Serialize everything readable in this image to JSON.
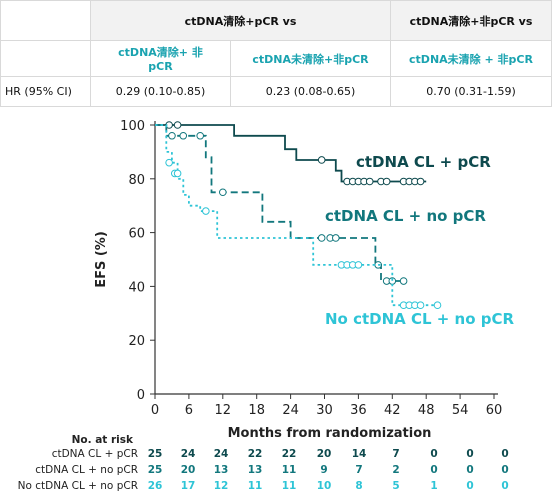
{
  "table": {
    "group1_header": "ctDNA清除+pCR vs",
    "group2_header": "ctDNA清除+非pCR vs",
    "sub1": "ctDNA清除+ 非 pCR",
    "sub2": "ctDNA未清除+非pCR",
    "sub3": "ctDNA未清除 + 非pCR",
    "row_label": "HR (95% CI)",
    "values": [
      "0.29 (0.10-0.85)",
      "0.23 (0.08-0.65)",
      "0.70 (0.31-1.59)"
    ]
  },
  "colors": {
    "cl_pcr": "#0e4a4e",
    "cl_nopcr": "#12777d",
    "nocl_nopcr": "#2ec4d6"
  },
  "chart_data": {
    "type": "line",
    "title": "",
    "xlabel": "Months from randomization",
    "ylabel": "EFS (%)",
    "xlim": [
      0,
      60
    ],
    "ylim": [
      0,
      100
    ],
    "xticks": [
      "0",
      "6",
      "12",
      "18",
      "24",
      "30",
      "36",
      "42",
      "48",
      "54",
      "60"
    ],
    "yticks": [
      "0",
      "20",
      "40",
      "60",
      "80",
      "100"
    ],
    "series": [
      {
        "name": "ctDNA CL + pCR",
        "color": "#0e4a4e",
        "dash": "solid",
        "steps": [
          [
            0,
            100
          ],
          [
            14,
            100
          ],
          [
            14,
            96
          ],
          [
            23,
            96
          ],
          [
            23,
            91
          ],
          [
            25,
            91
          ],
          [
            25,
            87
          ],
          [
            32,
            87
          ],
          [
            32,
            83
          ],
          [
            33,
            83
          ],
          [
            33,
            79
          ],
          [
            48,
            79
          ]
        ],
        "censored": [
          [
            2.5,
            100
          ],
          [
            4,
            100
          ],
          [
            29.5,
            87
          ],
          [
            34,
            79
          ],
          [
            35,
            79
          ],
          [
            36,
            79
          ],
          [
            37,
            79
          ],
          [
            38,
            79
          ],
          [
            40,
            79
          ],
          [
            41,
            79
          ],
          [
            44,
            79
          ],
          [
            45,
            79
          ],
          [
            46,
            79
          ],
          [
            47,
            79
          ]
        ]
      },
      {
        "name": "ctDNA CL + no pCR",
        "color": "#12777d",
        "dash": "dash",
        "steps": [
          [
            0,
            100
          ],
          [
            2,
            100
          ],
          [
            2,
            96
          ],
          [
            9,
            96
          ],
          [
            9,
            88
          ],
          [
            10,
            88
          ],
          [
            10,
            75
          ],
          [
            19,
            75
          ],
          [
            19,
            64
          ],
          [
            24,
            64
          ],
          [
            24,
            58
          ],
          [
            39,
            58
          ],
          [
            39,
            48
          ],
          [
            40,
            48
          ],
          [
            40,
            42
          ],
          [
            44,
            42
          ]
        ],
        "censored": [
          [
            3,
            96
          ],
          [
            5,
            96
          ],
          [
            8,
            96
          ],
          [
            12,
            75
          ],
          [
            29.5,
            58
          ],
          [
            31,
            58
          ],
          [
            32,
            58
          ],
          [
            39.5,
            48
          ],
          [
            41,
            42
          ],
          [
            42,
            42
          ],
          [
            44,
            42
          ]
        ]
      },
      {
        "name": "No ctDNA CL + no pCR",
        "color": "#2ec4d6",
        "dash": "dot",
        "steps": [
          [
            0,
            100
          ],
          [
            2,
            100
          ],
          [
            2,
            90
          ],
          [
            3,
            90
          ],
          [
            3,
            86
          ],
          [
            4,
            86
          ],
          [
            4,
            80
          ],
          [
            5,
            80
          ],
          [
            5,
            74
          ],
          [
            6,
            74
          ],
          [
            6,
            70
          ],
          [
            8,
            70
          ],
          [
            8,
            68
          ],
          [
            11,
            68
          ],
          [
            11,
            58
          ],
          [
            28,
            58
          ],
          [
            28,
            48
          ],
          [
            42,
            48
          ],
          [
            42,
            33
          ],
          [
            50,
            33
          ]
        ],
        "censored": [
          [
            2.5,
            86
          ],
          [
            3.5,
            82
          ],
          [
            4,
            82
          ],
          [
            9,
            68
          ],
          [
            33,
            48
          ],
          [
            34,
            48
          ],
          [
            35,
            48
          ],
          [
            36,
            48
          ],
          [
            44,
            33
          ],
          [
            45,
            33
          ],
          [
            46,
            33
          ],
          [
            47,
            33
          ],
          [
            50,
            33
          ]
        ]
      }
    ],
    "annotations": [
      "ctDNA CL + pCR",
      "ctDNA CL + no pCR",
      "No ctDNA CL + no pCR"
    ],
    "risk_table": {
      "header": "No. at risk",
      "rows": [
        {
          "label": "ctDNA CL + pCR",
          "values": [
            "25",
            "24",
            "24",
            "22",
            "22",
            "20",
            "14",
            "7",
            "0",
            "0",
            "0"
          ]
        },
        {
          "label": "ctDNA CL + no pCR",
          "values": [
            "25",
            "20",
            "13",
            "13",
            "11",
            "9",
            "7",
            "2",
            "0",
            "0",
            "0"
          ]
        },
        {
          "label": "No ctDNA CL + no pCR",
          "values": [
            "26",
            "17",
            "12",
            "11",
            "11",
            "10",
            "8",
            "5",
            "1",
            "0",
            "0"
          ]
        }
      ]
    }
  }
}
